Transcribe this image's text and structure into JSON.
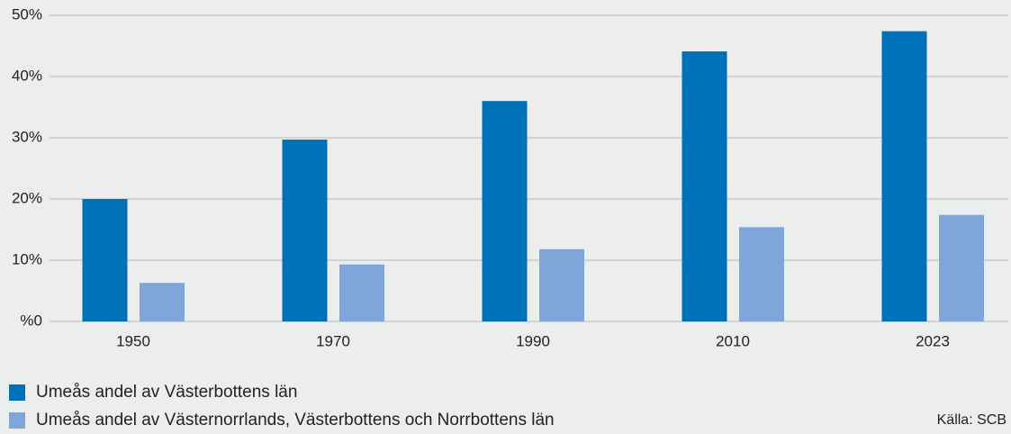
{
  "chart_data": {
    "type": "bar",
    "categories": [
      "1950",
      "1970",
      "1990",
      "2010",
      "2023"
    ],
    "series": [
      {
        "name": "Umeås andel av Västerbottens län",
        "color": "#0070b8",
        "values": [
          20,
          29.7,
          36,
          44.1,
          47.4
        ]
      },
      {
        "name": "Umeås andel av Västernorrlands, Västerbottens och Norrbottens län",
        "color": "#80a6d9",
        "values": [
          6.3,
          9.3,
          11.8,
          15.4,
          17.4
        ]
      }
    ],
    "ylim": [
      0,
      50
    ],
    "yticks": [
      {
        "value": 0,
        "label": "%0"
      },
      {
        "value": 10,
        "label": "10%"
      },
      {
        "value": 20,
        "label": "20%"
      },
      {
        "value": 30,
        "label": "30%"
      },
      {
        "value": 40,
        "label": "40%"
      },
      {
        "value": 50,
        "label": "50%"
      }
    ],
    "grid": true,
    "source": "Källa: SCB"
  }
}
